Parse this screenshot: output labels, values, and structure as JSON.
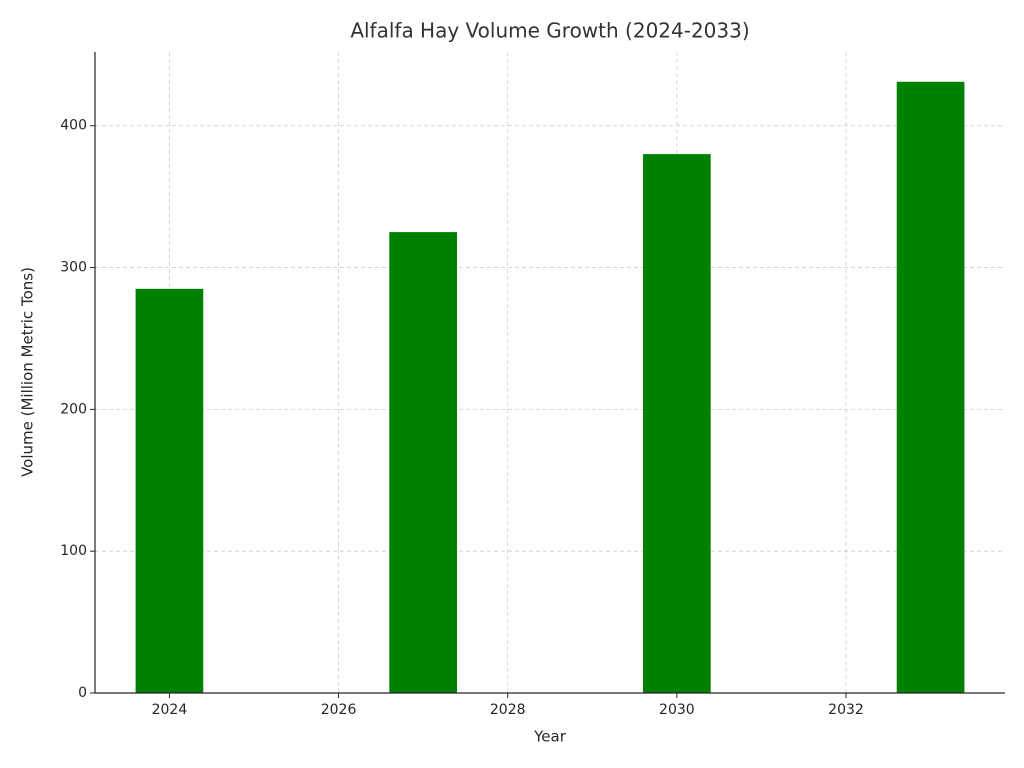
{
  "chart_data": {
    "type": "bar",
    "title": "Alfalfa Hay Volume Growth (2024-2033)",
    "x_label": "Year",
    "y_label": "Volume (Million Metric Tons)",
    "x": [
      2024,
      2027,
      2030,
      2033
    ],
    "values": [
      285,
      325,
      380,
      431
    ],
    "color": "#008000",
    "xlim": [
      2023.12,
      2033.88
    ],
    "xticks": [
      2024,
      2026,
      2028,
      2030,
      2032
    ],
    "ylim": [
      0,
      452
    ],
    "yticks": [
      0,
      100,
      200,
      300,
      400
    ],
    "grid": true
  }
}
